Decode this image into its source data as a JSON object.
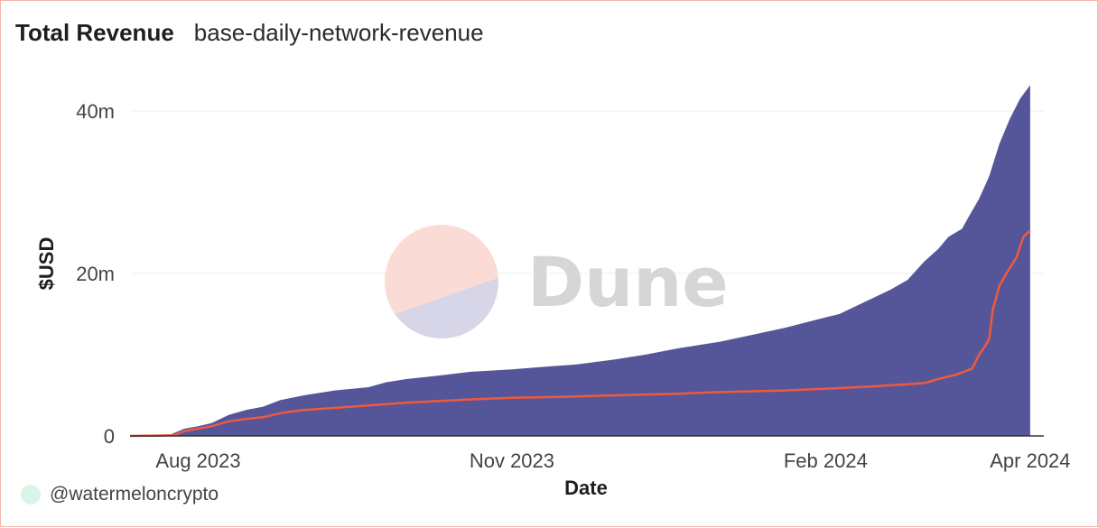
{
  "header": {
    "title": "Total Revenue",
    "subtitle": "base-daily-network-revenue"
  },
  "footer": {
    "author": "@watermeloncrypto"
  },
  "watermark": {
    "text": "Dune"
  },
  "colors": {
    "area": "#55559a",
    "line": "#ee5a3c",
    "grid": "#ececec",
    "axis": "#333333"
  },
  "chart_data": {
    "type": "area",
    "xlabel": "Date",
    "ylabel": "$USD",
    "ylim": [
      0,
      43
    ],
    "yticks": [
      {
        "value": 0,
        "label": "0"
      },
      {
        "value": 20,
        "label": "20m"
      },
      {
        "value": 40,
        "label": "40m"
      }
    ],
    "xlim": [
      "2023-07-12",
      "2024-04-05"
    ],
    "xticks": [
      {
        "date": "2023-08-01",
        "label": "Aug 2023"
      },
      {
        "date": "2023-11-01",
        "label": "Nov 2023"
      },
      {
        "date": "2024-02-01",
        "label": "Feb 2024"
      },
      {
        "date": "2024-04-01",
        "label": "Apr 2024"
      }
    ],
    "grid": true,
    "series": [
      {
        "type": "area",
        "color": "#55559a",
        "points": [
          [
            "2023-07-12",
            0
          ],
          [
            "2023-07-17",
            0.05
          ],
          [
            "2023-07-20",
            0.1
          ],
          [
            "2023-07-24",
            0.2
          ],
          [
            "2023-07-28",
            0.9
          ],
          [
            "2023-08-01",
            1.2
          ],
          [
            "2023-08-05",
            1.6
          ],
          [
            "2023-08-10",
            2.6
          ],
          [
            "2023-08-15",
            3.2
          ],
          [
            "2023-08-20",
            3.6
          ],
          [
            "2023-08-25",
            4.4
          ],
          [
            "2023-09-01",
            5.0
          ],
          [
            "2023-09-10",
            5.6
          ],
          [
            "2023-09-20",
            6.0
          ],
          [
            "2023-09-25",
            6.6
          ],
          [
            "2023-10-01",
            7.0
          ],
          [
            "2023-10-10",
            7.4
          ],
          [
            "2023-10-20",
            7.9
          ],
          [
            "2023-11-01",
            8.2
          ],
          [
            "2023-11-10",
            8.5
          ],
          [
            "2023-11-20",
            8.8
          ],
          [
            "2023-12-01",
            9.4
          ],
          [
            "2023-12-10",
            10.0
          ],
          [
            "2023-12-20",
            10.8
          ],
          [
            "2024-01-01",
            11.6
          ],
          [
            "2024-01-10",
            12.4
          ],
          [
            "2024-01-20",
            13.3
          ],
          [
            "2024-02-01",
            14.6
          ],
          [
            "2024-02-05",
            15.0
          ],
          [
            "2024-02-10",
            16.0
          ],
          [
            "2024-02-15",
            17.0
          ],
          [
            "2024-02-20",
            18.0
          ],
          [
            "2024-02-25",
            19.2
          ],
          [
            "2024-03-01",
            21.5
          ],
          [
            "2024-03-05",
            23.0
          ],
          [
            "2024-03-08",
            24.5
          ],
          [
            "2024-03-12",
            25.5
          ],
          [
            "2024-03-14",
            27.0
          ],
          [
            "2024-03-17",
            29.2
          ],
          [
            "2024-03-20",
            32.0
          ],
          [
            "2024-03-23",
            36.0
          ],
          [
            "2024-03-26",
            39.0
          ],
          [
            "2024-03-29",
            41.5
          ],
          [
            "2024-04-01",
            43.2
          ]
        ]
      },
      {
        "type": "line",
        "color": "#ee5a3c",
        "points": [
          [
            "2023-07-12",
            0
          ],
          [
            "2023-07-20",
            0.05
          ],
          [
            "2023-07-25",
            0.1
          ],
          [
            "2023-07-28",
            0.6
          ],
          [
            "2023-08-01",
            0.9
          ],
          [
            "2023-08-05",
            1.2
          ],
          [
            "2023-08-10",
            1.8
          ],
          [
            "2023-08-15",
            2.1
          ],
          [
            "2023-08-20",
            2.3
          ],
          [
            "2023-08-25",
            2.8
          ],
          [
            "2023-09-01",
            3.2
          ],
          [
            "2023-09-15",
            3.6
          ],
          [
            "2023-10-01",
            4.1
          ],
          [
            "2023-10-20",
            4.5
          ],
          [
            "2023-11-01",
            4.7
          ],
          [
            "2023-11-15",
            4.8
          ],
          [
            "2023-12-01",
            5.0
          ],
          [
            "2023-12-20",
            5.2
          ],
          [
            "2024-01-01",
            5.4
          ],
          [
            "2024-01-20",
            5.6
          ],
          [
            "2024-02-01",
            5.8
          ],
          [
            "2024-02-15",
            6.1
          ],
          [
            "2024-03-01",
            6.5
          ],
          [
            "2024-03-05",
            7.0
          ],
          [
            "2024-03-10",
            7.5
          ],
          [
            "2024-03-15",
            8.3
          ],
          [
            "2024-03-17",
            10.0
          ],
          [
            "2024-03-19",
            11.2
          ],
          [
            "2024-03-20",
            12.0
          ],
          [
            "2024-03-21",
            15.5
          ],
          [
            "2024-03-23",
            18.5
          ],
          [
            "2024-03-25",
            20.0
          ],
          [
            "2024-03-28",
            22.0
          ],
          [
            "2024-03-30",
            24.5
          ],
          [
            "2024-04-01",
            25.3
          ]
        ]
      }
    ]
  }
}
